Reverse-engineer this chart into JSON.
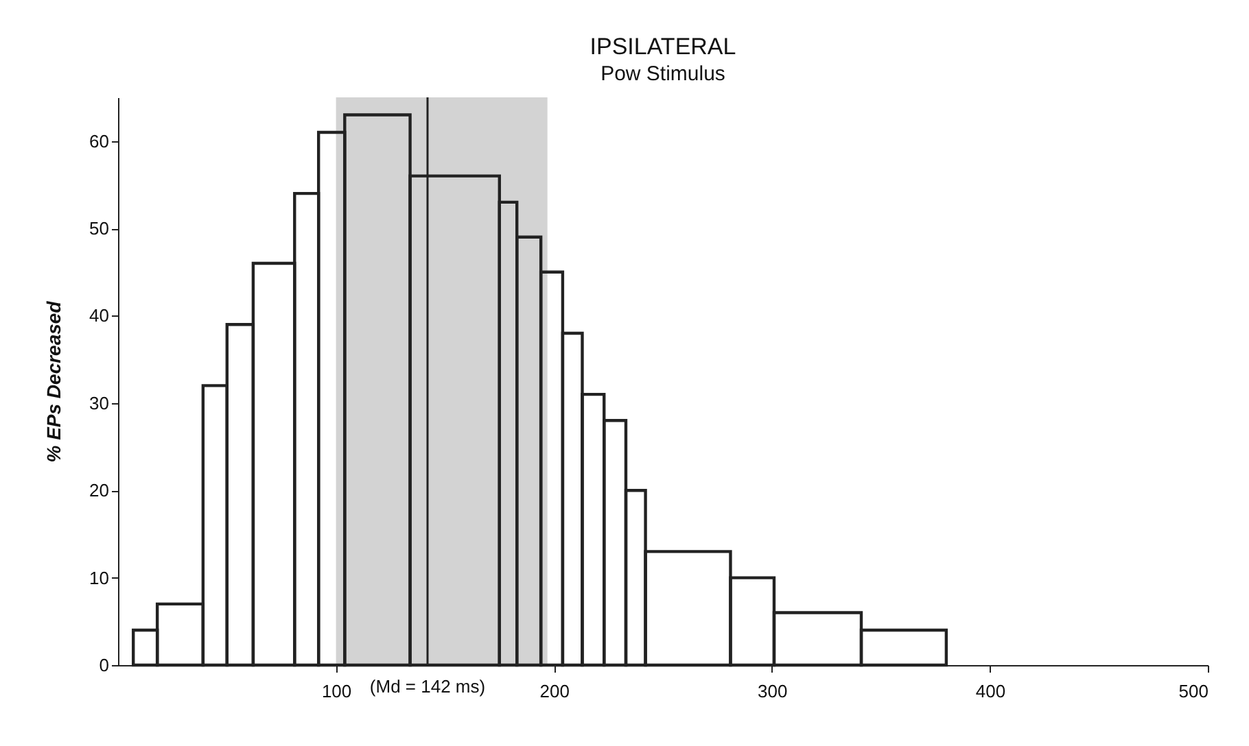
{
  "chart_data": {
    "type": "histogram",
    "title": "IPSILATERAL",
    "subtitle": "Pow Stimulus",
    "ylabel": "% EPs Decreased",
    "bins": [
      7,
      18,
      39,
      50,
      62,
      81,
      92,
      104,
      134,
      175,
      183,
      194,
      204,
      213,
      223,
      233,
      242,
      281,
      301,
      341,
      380
    ],
    "values": [
      4,
      7,
      32,
      39,
      46,
      54,
      61,
      63,
      56,
      53,
      49,
      45,
      38,
      31,
      28,
      20,
      13,
      10,
      6,
      4
    ],
    "color": "#222222",
    "xlim": [
      0,
      500
    ],
    "xticks": [
      100,
      200,
      300,
      400,
      500
    ],
    "ylim": [
      0,
      65
    ],
    "yticks": [
      0,
      10,
      20,
      30,
      40,
      50,
      60
    ],
    "ref_lines": [
      {
        "axis": "x",
        "value": 142,
        "label": "(Md = 142 ms)",
        "color": "#222222"
      }
    ],
    "bands": [
      {
        "axis": "x",
        "from": 100,
        "to": 197,
        "color": "#c8c8c8"
      }
    ],
    "grid": false
  }
}
